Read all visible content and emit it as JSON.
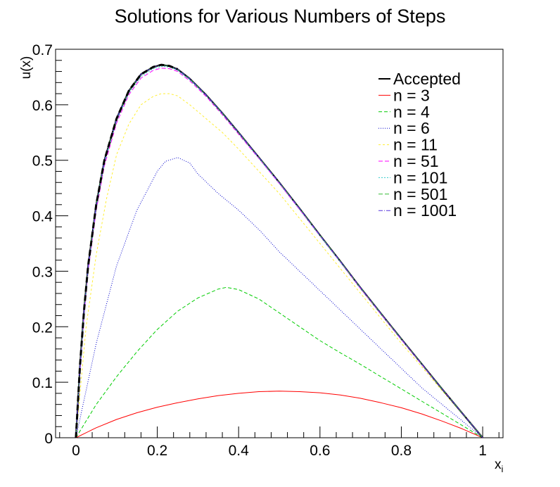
{
  "chart_data": {
    "type": "line",
    "title": "Solutions for Various Numbers of Steps",
    "xlabel": "x",
    "xlabel_subscript": "i",
    "ylabel": "u(x)",
    "xlim": [
      -0.05,
      1.05
    ],
    "ylim": [
      0,
      0.7
    ],
    "x_ticks": [
      0,
      0.2,
      0.4,
      0.6,
      0.8,
      1
    ],
    "x_tick_labels": [
      "0",
      "0.2",
      "0.4",
      "0.6",
      "0.8",
      "1"
    ],
    "y_ticks": [
      0,
      0.1,
      0.2,
      0.3,
      0.4,
      0.5,
      0.6,
      0.7
    ],
    "y_tick_labels": [
      "0",
      "0.1",
      "0.2",
      "0.3",
      "0.4",
      "0.5",
      "0.6",
      "0.7"
    ],
    "grid": false,
    "legend_position": "top-right",
    "series": [
      {
        "name": "Accepted",
        "color": "#000000",
        "dash": "none",
        "width": 2.2,
        "x": [
          0,
          0.01,
          0.02,
          0.03,
          0.05,
          0.07,
          0.1,
          0.13,
          0.16,
          0.19,
          0.21,
          0.23,
          0.25,
          0.28,
          0.32,
          0.36,
          0.4,
          0.45,
          0.5,
          0.55,
          0.6,
          0.65,
          0.7,
          0.75,
          0.8,
          0.85,
          0.9,
          0.95,
          1.0
        ],
        "y": [
          0,
          0.13,
          0.23,
          0.31,
          0.42,
          0.5,
          0.575,
          0.625,
          0.655,
          0.668,
          0.672,
          0.67,
          0.664,
          0.647,
          0.618,
          0.585,
          0.55,
          0.505,
          0.46,
          0.413,
          0.365,
          0.318,
          0.27,
          0.224,
          0.178,
          0.133,
          0.088,
          0.044,
          0
        ]
      },
      {
        "name": "n = 3",
        "color": "#ff0000",
        "dash": "none",
        "width": 1,
        "x": [
          0,
          0.05,
          0.1,
          0.15,
          0.2,
          0.25,
          0.3,
          0.35,
          0.4,
          0.45,
          0.5,
          0.55,
          0.6,
          0.65,
          0.7,
          0.75,
          0.8,
          0.85,
          0.9,
          0.95,
          1.0
        ],
        "y": [
          0,
          0.018,
          0.033,
          0.045,
          0.055,
          0.063,
          0.07,
          0.076,
          0.08,
          0.083,
          0.084,
          0.083,
          0.081,
          0.077,
          0.071,
          0.063,
          0.054,
          0.043,
          0.03,
          0.016,
          0
        ]
      },
      {
        "name": "n = 4",
        "color": "#00cc00",
        "dash": "5,3",
        "width": 1,
        "x": [
          0,
          0.05,
          0.1,
          0.15,
          0.2,
          0.25,
          0.3,
          0.35,
          0.37,
          0.4,
          0.45,
          0.5,
          0.55,
          0.6,
          0.65,
          0.7,
          0.75,
          0.8,
          0.85,
          0.9,
          0.95,
          1.0
        ],
        "y": [
          0,
          0.06,
          0.11,
          0.155,
          0.195,
          0.228,
          0.252,
          0.268,
          0.271,
          0.267,
          0.25,
          0.225,
          0.2,
          0.175,
          0.153,
          0.132,
          0.11,
          0.088,
          0.066,
          0.044,
          0.022,
          0
        ]
      },
      {
        "name": "n = 6",
        "color": "#0000cc",
        "dash": "1,2",
        "width": 1,
        "x": [
          0,
          0.05,
          0.1,
          0.15,
          0.2,
          0.22,
          0.25,
          0.28,
          0.3,
          0.35,
          0.4,
          0.45,
          0.5,
          0.55,
          0.6,
          0.65,
          0.7,
          0.75,
          0.8,
          0.85,
          0.9,
          0.95,
          1.0
        ],
        "y": [
          0,
          0.17,
          0.31,
          0.41,
          0.48,
          0.498,
          0.505,
          0.495,
          0.475,
          0.44,
          0.41,
          0.375,
          0.335,
          0.3,
          0.265,
          0.23,
          0.195,
          0.16,
          0.125,
          0.09,
          0.06,
          0.03,
          0
        ]
      },
      {
        "name": "n = 11",
        "color": "#ffee33",
        "dash": "3,3",
        "width": 1,
        "x": [
          0,
          0.025,
          0.05,
          0.075,
          0.1,
          0.13,
          0.16,
          0.19,
          0.21,
          0.23,
          0.25,
          0.28,
          0.32,
          0.36,
          0.4,
          0.45,
          0.5,
          0.55,
          0.6,
          0.65,
          0.7,
          0.75,
          0.8,
          0.85,
          0.9,
          0.95,
          1.0
        ],
        "y": [
          0,
          0.2,
          0.33,
          0.43,
          0.51,
          0.565,
          0.6,
          0.615,
          0.62,
          0.62,
          0.616,
          0.6,
          0.575,
          0.55,
          0.52,
          0.48,
          0.44,
          0.395,
          0.35,
          0.305,
          0.26,
          0.215,
          0.17,
          0.128,
          0.085,
          0.043,
          0
        ]
      },
      {
        "name": "n = 51",
        "color": "#ff00ff",
        "dash": "6,3",
        "width": 1,
        "x": [
          0,
          0.01,
          0.02,
          0.03,
          0.05,
          0.07,
          0.1,
          0.13,
          0.16,
          0.19,
          0.21,
          0.23,
          0.25,
          0.28,
          0.32,
          0.36,
          0.4,
          0.45,
          0.5,
          0.55,
          0.6,
          0.65,
          0.7,
          0.75,
          0.8,
          0.85,
          0.9,
          0.95,
          1.0
        ],
        "y": [
          0,
          0.12,
          0.22,
          0.3,
          0.41,
          0.49,
          0.567,
          0.618,
          0.648,
          0.662,
          0.666,
          0.665,
          0.66,
          0.643,
          0.615,
          0.582,
          0.547,
          0.503,
          0.458,
          0.411,
          0.364,
          0.317,
          0.269,
          0.223,
          0.177,
          0.132,
          0.088,
          0.044,
          0
        ]
      },
      {
        "name": "n = 101",
        "color": "#33cccc",
        "dash": "2,2",
        "width": 1,
        "x": [
          0,
          0.01,
          0.02,
          0.03,
          0.05,
          0.07,
          0.1,
          0.13,
          0.16,
          0.19,
          0.21,
          0.23,
          0.25,
          0.28,
          0.32,
          0.36,
          0.4,
          0.45,
          0.5,
          0.55,
          0.6,
          0.65,
          0.7,
          0.75,
          0.8,
          0.85,
          0.9,
          0.95,
          1.0
        ],
        "y": [
          0,
          0.125,
          0.225,
          0.305,
          0.415,
          0.495,
          0.571,
          0.621,
          0.651,
          0.665,
          0.669,
          0.668,
          0.662,
          0.645,
          0.617,
          0.584,
          0.549,
          0.504,
          0.459,
          0.412,
          0.364,
          0.317,
          0.27,
          0.224,
          0.178,
          0.133,
          0.088,
          0.044,
          0
        ]
      },
      {
        "name": "n = 501",
        "color": "#33bb33",
        "dash": "6,3",
        "width": 1,
        "x": [
          0,
          0.01,
          0.02,
          0.03,
          0.05,
          0.07,
          0.1,
          0.13,
          0.16,
          0.19,
          0.21,
          0.23,
          0.25,
          0.28,
          0.32,
          0.36,
          0.4,
          0.45,
          0.5,
          0.55,
          0.6,
          0.65,
          0.7,
          0.75,
          0.8,
          0.85,
          0.9,
          0.95,
          1.0
        ],
        "y": [
          0,
          0.13,
          0.23,
          0.31,
          0.42,
          0.5,
          0.575,
          0.625,
          0.655,
          0.668,
          0.672,
          0.67,
          0.664,
          0.647,
          0.618,
          0.585,
          0.55,
          0.505,
          0.46,
          0.413,
          0.365,
          0.318,
          0.27,
          0.224,
          0.178,
          0.133,
          0.088,
          0.044,
          0
        ]
      },
      {
        "name": "n = 1001",
        "color": "#5533dd",
        "dash": "6,2,1,2",
        "width": 1,
        "x": [
          0,
          0.01,
          0.02,
          0.03,
          0.05,
          0.07,
          0.1,
          0.13,
          0.16,
          0.19,
          0.21,
          0.23,
          0.25,
          0.28,
          0.32,
          0.36,
          0.4,
          0.45,
          0.5,
          0.55,
          0.6,
          0.65,
          0.7,
          0.75,
          0.8,
          0.85,
          0.9,
          0.95,
          1.0
        ],
        "y": [
          0,
          0.13,
          0.23,
          0.31,
          0.42,
          0.5,
          0.575,
          0.625,
          0.655,
          0.668,
          0.672,
          0.67,
          0.664,
          0.647,
          0.618,
          0.585,
          0.55,
          0.505,
          0.46,
          0.413,
          0.365,
          0.318,
          0.27,
          0.224,
          0.178,
          0.133,
          0.088,
          0.044,
          0
        ]
      }
    ],
    "accepted_dashed_overlay": {
      "color": "#000000",
      "dash": "8,5",
      "width": 3,
      "x": [
        0,
        0.01,
        0.02,
        0.03,
        0.05,
        0.07,
        0.1,
        0.13,
        0.16,
        0.19,
        0.21,
        0.23,
        0.25
      ],
      "y": [
        0,
        0.13,
        0.23,
        0.31,
        0.42,
        0.5,
        0.575,
        0.625,
        0.655,
        0.668,
        0.672,
        0.67,
        0.664
      ]
    }
  }
}
